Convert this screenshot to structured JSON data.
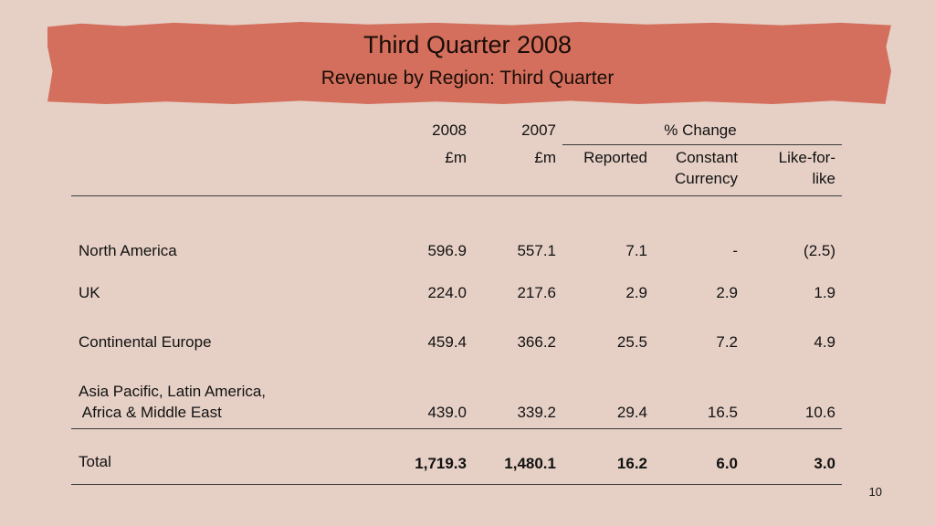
{
  "title": "Third Quarter 2008",
  "subtitle": "Revenue by Region: Third Quarter",
  "header": {
    "y2008": "2008",
    "y2007": "2007",
    "pct_change": "% Change",
    "unit_2008": "£m",
    "unit_2007": "£m",
    "reported": "Reported",
    "constant_1": "Constant",
    "constant_2": "Currency",
    "like_1": "Like-for-",
    "like_2": "like"
  },
  "rows": [
    {
      "region": "North America",
      "v2008": "596.9",
      "v2007": "557.1",
      "reported": "7.1",
      "constant": "-",
      "like": "(2.5)"
    },
    {
      "region": "UK",
      "v2008": "224.0",
      "v2007": "217.6",
      "reported": "2.9",
      "constant": "2.9",
      "like": "1.9"
    },
    {
      "region": "Continental Europe",
      "v2008": "459.4",
      "v2007": "366.2",
      "reported": "25.5",
      "constant": "7.2",
      "like": "4.9"
    },
    {
      "region_1": "Asia Pacific, Latin America,",
      "region_2": " Africa & Middle East",
      "v2008": "439.0",
      "v2007": "339.2",
      "reported": "29.4",
      "constant": "16.5",
      "like": "10.6"
    }
  ],
  "total": {
    "label": "Total",
    "v2008": "1,719.3",
    "v2007": "1,480.1",
    "reported": "16.2",
    "constant": "6.0",
    "like": "3.0"
  },
  "page_number": "10"
}
